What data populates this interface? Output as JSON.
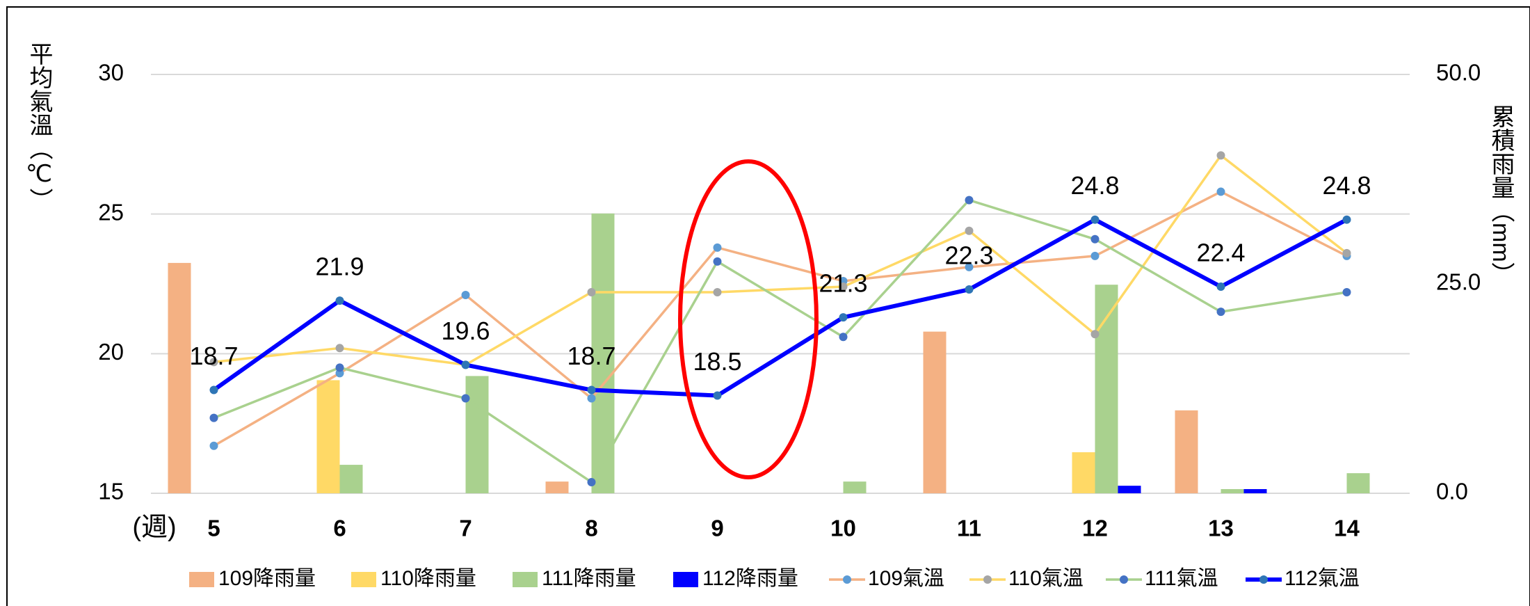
{
  "chart_data": {
    "type": "combo",
    "y_label": "平均氣溫（℃）",
    "y2_label": "累積雨量（mm）",
    "x_label": "(週)",
    "categories": [
      "5",
      "6",
      "7",
      "8",
      "9",
      "10",
      "11",
      "12",
      "13",
      "14"
    ],
    "ylim": [
      15,
      30
    ],
    "yticks": [
      15,
      20,
      25,
      30
    ],
    "y2lim": [
      0,
      50
    ],
    "y2ticks": [
      {
        "value": 0,
        "label": "0.0"
      },
      {
        "value": 25,
        "label": "25.0"
      },
      {
        "value": 50,
        "label": "50.0"
      }
    ],
    "grid": true,
    "legend": "bottom",
    "series": [
      {
        "name": "109降雨量",
        "type": "bar",
        "axis": "y2",
        "color": "#f4b183",
        "values": [
          27.5,
          0,
          0,
          1.4,
          0,
          0,
          19.3,
          0,
          9.9,
          0
        ]
      },
      {
        "name": "110降雨量",
        "type": "bar",
        "axis": "y2",
        "color": "#ffd966",
        "values": [
          0,
          13.5,
          0,
          0,
          0,
          0,
          0,
          4.9,
          0,
          0
        ]
      },
      {
        "name": "111降雨量",
        "type": "bar",
        "axis": "y2",
        "color": "#a9d18e",
        "values": [
          0,
          3.4,
          14.0,
          33.4,
          0,
          1.4,
          0,
          24.9,
          0.5,
          2.4
        ]
      },
      {
        "name": "112降雨量",
        "type": "bar",
        "axis": "y2",
        "color": "#0000ff",
        "values": [
          0,
          0,
          0,
          0,
          0,
          0,
          0,
          0.9,
          0.5,
          0
        ]
      },
      {
        "name": "109氣溫",
        "type": "line",
        "color": "#f4b183",
        "marker_color": "#5b9bd5",
        "line_width": 3.5,
        "values": [
          16.7,
          19.3,
          22.1,
          18.4,
          23.8,
          22.6,
          23.1,
          23.5,
          25.8,
          23.5
        ]
      },
      {
        "name": "110氣溫",
        "type": "line",
        "color": "#ffd966",
        "marker_color": "#a5a5a5",
        "line_width": 3.5,
        "values": [
          19.7,
          20.2,
          19.6,
          22.2,
          22.2,
          22.4,
          24.4,
          20.7,
          27.1,
          23.6
        ]
      },
      {
        "name": "111氣溫",
        "type": "line",
        "color": "#a9d18e",
        "marker_color": "#4472c4",
        "line_width": 3.5,
        "values": [
          17.7,
          19.5,
          18.4,
          15.4,
          23.3,
          20.6,
          25.5,
          24.1,
          21.5,
          22.2
        ]
      },
      {
        "name": "112氣溫",
        "type": "line",
        "color": "#0000ff",
        "marker_color": "#2e75b6",
        "line_width": 6,
        "data_labels": true,
        "values": [
          18.7,
          21.9,
          19.6,
          18.7,
          18.5,
          21.3,
          22.3,
          24.8,
          22.4,
          24.8
        ]
      }
    ]
  }
}
